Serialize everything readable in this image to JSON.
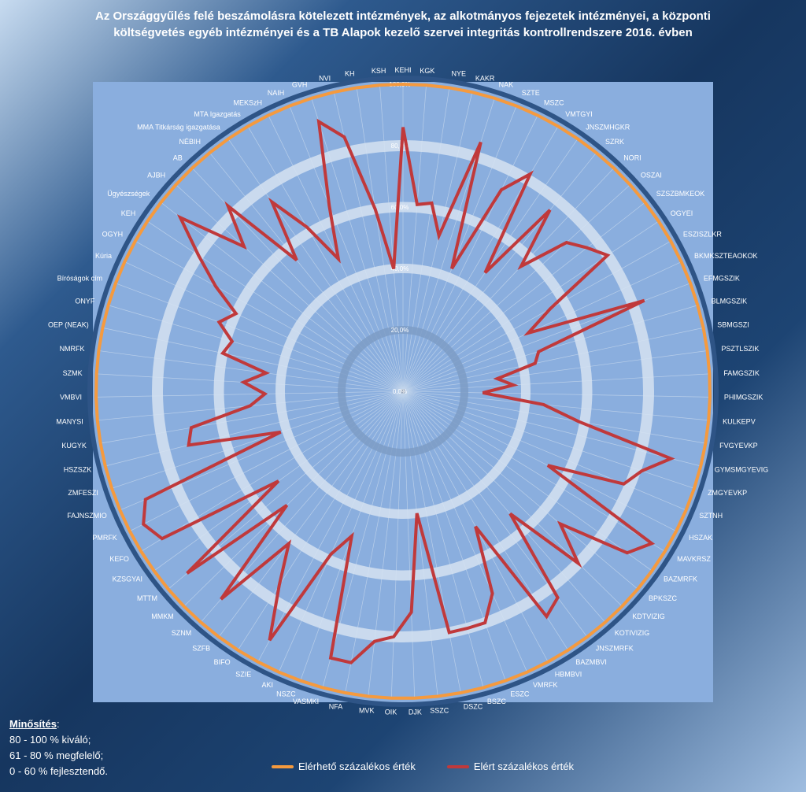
{
  "title": {
    "line1": "Az Országgyűlés felé beszámolásra kötelezett intézmények, az alkotmányos fejezetek intézményei, a központi",
    "line2": "költségvetés egyéb intézményei  és a TB Alapok kezelő szervei  integritás kontrollrendszere 2016. évben"
  },
  "rating": {
    "heading": "Minősítés",
    "lines": [
      "80 - 100 % kiváló;",
      "61 - 80 % megfelelő;",
      "0 - 60 %  fejlesztendő."
    ]
  },
  "colors": {
    "plot_bg": "#8aaede",
    "achievable": "#f59a3e",
    "achieved": "#c0393b",
    "grid": "#c5d7ec",
    "ring_dark": "#2e5486",
    "ring_mid": "#7c9cc6",
    "ring_light": "#d5e2f1"
  },
  "chart_data": {
    "type": "radar",
    "rlim": [
      0,
      100
    ],
    "r_ticks": [
      "0,0%",
      "20,0%",
      "40,0%",
      "60,0%",
      "80,0%",
      "100,0%"
    ],
    "categories": [
      "KEHI",
      "KGK",
      "NYE",
      "KAKR",
      "NAK",
      "SZTE",
      "MSZC",
      "VMTGYI",
      "JNSZMHGKR",
      "SZRK",
      "NORI",
      "OSZAI",
      "SZSZBMKEOK",
      "OGYEI",
      "ESZISZLKR",
      "BKMKSZTEAOKOK",
      "EFMGSZIK",
      "BLMGSZIK",
      "SBMGSZI",
      "PSZTLSZIK",
      "FAMGSZIK",
      "PHIMGSZIK",
      "KULKEPV",
      "FVGYEVKP",
      "GYMSMGYEVIG",
      "ZMGYEVKP",
      "SZTNH",
      "HSZAK",
      "MAVKRSZ",
      "BAZMRFK",
      "BPKSZC",
      "KDTVIZIG",
      "KOTIVIZIG",
      "JNSZMRFK",
      "BAZMBVI",
      "HBMBVI",
      "VMRFK",
      "ESZC",
      "BSZC",
      "DSZC",
      "SSZC",
      "DJK",
      "OIK",
      "MVK",
      "NFA",
      "VASMKI",
      "NSZC",
      "AKI",
      "SZIE",
      "BIFO",
      "SZFB",
      "SZNM",
      "MMKM",
      "MTTM",
      "KZSGYAI",
      "KEFO",
      "PMRFK",
      "FAJNSZMIO",
      "ZMFESZI",
      "HSZSZK",
      "KUGYK",
      "MANYSI",
      "VMBVI",
      "SZMK",
      "NMRFK",
      "OEP (NEAK)",
      "ONYF",
      "Bíróságok cím",
      "Kúria",
      "OGYH",
      "KEH",
      "Ügyészségek",
      "AJBH",
      "AB",
      "NÉBIH",
      "MMA Titkárság igazgatása",
      "MTA Igazgatás",
      "MEKSzH",
      "NAIH",
      "GVH",
      "NVI",
      "KH",
      "KSH"
    ],
    "series": [
      {
        "name": "Elérhető százalékos érték",
        "values": [
          100,
          100,
          100,
          100,
          100,
          100,
          100,
          100,
          100,
          100,
          100,
          100,
          100,
          100,
          100,
          100,
          100,
          100,
          100,
          100,
          100,
          100,
          100,
          100,
          100,
          100,
          100,
          100,
          100,
          100,
          100,
          100,
          100,
          100,
          100,
          100,
          100,
          100,
          100,
          100,
          100,
          100,
          100,
          100,
          100,
          100,
          100,
          100,
          100,
          100,
          100,
          100,
          100,
          100,
          100,
          100,
          100,
          100,
          100,
          100,
          100,
          100,
          100,
          100,
          100,
          100,
          100,
          100,
          100,
          100,
          100,
          100,
          100,
          100,
          100,
          100,
          100,
          100,
          100,
          100,
          100,
          100,
          100
        ]
      },
      {
        "name": "Elért százalékos érték",
        "values": [
          86,
          61,
          62,
          52,
          85,
          43,
          73,
          82,
          47,
          76,
          56,
          72,
          76,
          80,
          55,
          45,
          84,
          46,
          44,
          31,
          36,
          26,
          46,
          58,
          90,
          82,
          78,
          53,
          95,
          90,
          67,
          80,
          53,
          84,
          87,
          50,
          72,
          80,
          80,
          80,
          40,
          72,
          80,
          82,
          90,
          90,
          50,
          58,
          92,
          75,
          62,
          90,
          53,
          92,
          50,
          92,
          95,
          91,
          42,
          72,
          70,
          50,
          45,
          52,
          45,
          60,
          58,
          64,
          60,
          70,
          80,
          92,
          70,
          83,
          55,
          75,
          62,
          48,
          65,
          92,
          85,
          60,
          40
        ]
      }
    ]
  },
  "legend": {
    "achievable_label": "Elérhető százalékos érték",
    "achieved_label": "Elért százalékos érték"
  }
}
